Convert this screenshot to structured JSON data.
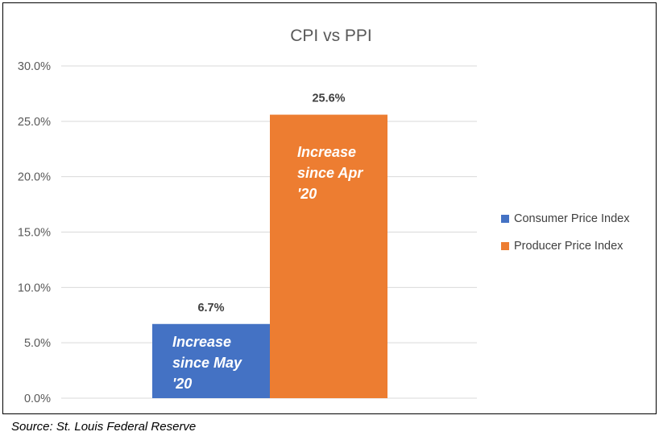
{
  "chart_data": {
    "type": "bar",
    "title": "CPI vs PPI",
    "xlabel": "",
    "ylabel": "",
    "ylim": [
      0,
      30
    ],
    "y_ticks": [
      "0.0%",
      "5.0%",
      "10.0%",
      "15.0%",
      "20.0%",
      "25.0%",
      "30.0%"
    ],
    "grid": true,
    "legend_position": "right",
    "series": [
      {
        "name": "Consumer Price Index",
        "value": 6.7,
        "data_label": "6.7%",
        "annotation": [
          "Increase",
          "since May",
          "'20"
        ],
        "color": "#4472C4"
      },
      {
        "name": "Producer Price Index",
        "value": 25.6,
        "data_label": "25.6%",
        "annotation": [
          "Increase",
          "since Apr",
          "'20"
        ],
        "color": "#ED7D31"
      }
    ]
  },
  "source_note": "Source:  St. Louis Federal Reserve"
}
